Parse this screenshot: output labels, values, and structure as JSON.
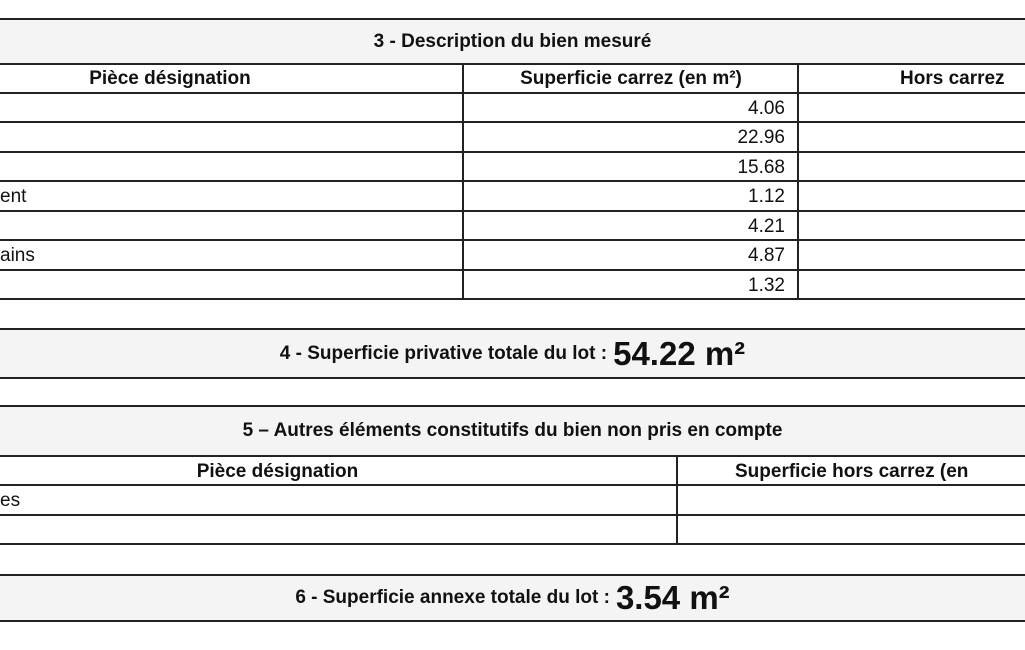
{
  "section3": {
    "title": "3 -  Description du bien mesuré",
    "columns": [
      "Pièce désignation",
      "Superficie carrez (en m²)",
      "Hors carrez"
    ],
    "rows": [
      {
        "label": "",
        "carrez": "4.06"
      },
      {
        "label": "",
        "carrez": "22.96"
      },
      {
        "label": "",
        "carrez": "15.68"
      },
      {
        "label": "ent",
        "carrez": "1.12"
      },
      {
        "label": "",
        "carrez": "4.21"
      },
      {
        "label": "ains",
        "carrez": "4.87"
      },
      {
        "label": "",
        "carrez": "1.32"
      }
    ]
  },
  "section4": {
    "label": "4 -  Superficie privative totale du lot :",
    "value": "54.22 m²"
  },
  "section5": {
    "title": "5 – Autres éléments constitutifs du bien non pris en compte",
    "columns": [
      "Pièce désignation",
      "Superficie hors carrez (en"
    ],
    "rows": [
      {
        "label": "es"
      },
      {
        "label": ""
      }
    ]
  },
  "section6": {
    "label": "6 -   Superficie annexe totale du lot :",
    "value": "3.54 m²"
  }
}
